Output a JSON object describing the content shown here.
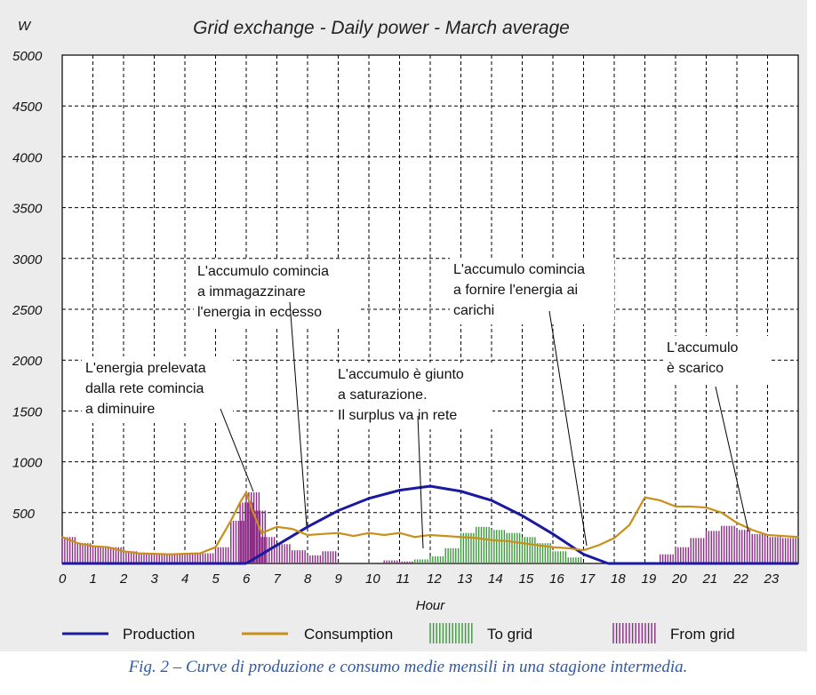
{
  "chart_data": {
    "type": "area",
    "title": "Grid exchange - Daily power - March average",
    "ylabel": "W",
    "xlabel": "Hour",
    "ylim": [
      0,
      5000
    ],
    "xlim": [
      0,
      24
    ],
    "grid": true,
    "legend_position": "bottom",
    "y_ticks": [
      "5000",
      "4500",
      "4000",
      "3500",
      "3000",
      "2500",
      "2000",
      "1500",
      "1000",
      "500"
    ],
    "x_ticks": [
      "0",
      "1",
      "2",
      "3",
      "4",
      "5",
      "6",
      "7",
      "8",
      "9",
      "10",
      "11",
      "12",
      "13",
      "14",
      "15",
      "16",
      "17",
      "18",
      "19",
      "20",
      "21",
      "22",
      "23"
    ],
    "series": [
      {
        "name": "Production",
        "color": "#1a1aa0",
        "kind": "line",
        "x": [
          6,
          7,
          8,
          9,
          10,
          11,
          12,
          13,
          14,
          15,
          16,
          17,
          17.8
        ],
        "y": [
          0,
          180,
          360,
          520,
          640,
          720,
          760,
          710,
          620,
          470,
          290,
          90,
          0
        ]
      },
      {
        "name": "Consumption",
        "color": "#c8901a",
        "kind": "line",
        "x": [
          0,
          0.5,
          1,
          1.5,
          2,
          2.5,
          3,
          3.5,
          4,
          4.5,
          5,
          5.5,
          5.8,
          6,
          6.2,
          6.5,
          7,
          7.5,
          8,
          8.5,
          9,
          9.5,
          10,
          10.5,
          11,
          11.5,
          12,
          12.5,
          13,
          13.5,
          14,
          14.5,
          15,
          15.5,
          16,
          16.5,
          17,
          17.5,
          18,
          18.5,
          19,
          19.5,
          20,
          20.5,
          21,
          21.5,
          22,
          22.5,
          23,
          23.5,
          24
        ],
        "y": [
          260,
          200,
          170,
          160,
          120,
          100,
          95,
          90,
          95,
          100,
          160,
          420,
          600,
          700,
          520,
          300,
          360,
          340,
          280,
          290,
          300,
          270,
          300,
          280,
          300,
          260,
          280,
          270,
          260,
          250,
          230,
          220,
          200,
          180,
          160,
          150,
          130,
          180,
          250,
          380,
          650,
          620,
          560,
          560,
          550,
          500,
          400,
          330,
          280,
          270,
          260
        ]
      },
      {
        "name": "To grid",
        "color": "#3a9a3a",
        "kind": "bars",
        "x": [
          11,
          11.5,
          12,
          12.5,
          13,
          13.5,
          14,
          14.5,
          15,
          15.5,
          16,
          16.5
        ],
        "y": [
          10,
          40,
          70,
          150,
          300,
          360,
          330,
          300,
          260,
          200,
          120,
          60
        ]
      },
      {
        "name": "From grid",
        "color": "#8c2c86",
        "kind": "bars",
        "x": [
          0,
          0.5,
          1,
          1.5,
          2,
          2.5,
          3,
          3.5,
          4,
          4.5,
          5,
          5.5,
          5.8,
          6,
          6.2,
          6.5,
          7,
          7.5,
          8,
          8.5,
          10.5,
          11,
          19.5,
          20,
          20.5,
          21,
          21.5,
          22,
          22.5,
          23,
          23.5
        ],
        "y": [
          260,
          200,
          170,
          160,
          120,
          100,
          95,
          90,
          95,
          100,
          160,
          420,
          600,
          700,
          520,
          260,
          190,
          130,
          80,
          120,
          30,
          20,
          90,
          160,
          250,
          320,
          370,
          330,
          290,
          260,
          250
        ]
      }
    ],
    "annotations": [
      {
        "lines": [
          "L'energia prelevata",
          "dalla rete comincia",
          "a diminuire"
        ]
      },
      {
        "lines": [
          "L'accumulo comincia",
          "a immagazzinare",
          "l'energia in eccesso"
        ]
      },
      {
        "lines": [
          "L'accumulo è giunto",
          "a saturazione.",
          "Il surplus va in rete"
        ]
      },
      {
        "lines": [
          "L'accumulo comincia",
          "a fornire l'energia ai",
          "carichi"
        ]
      },
      {
        "lines": [
          "L'accumulo",
          "è scarico"
        ]
      }
    ]
  },
  "caption": "Fig. 2 – Curve di produzione e consumo medie mensili in una stagione intermedia."
}
